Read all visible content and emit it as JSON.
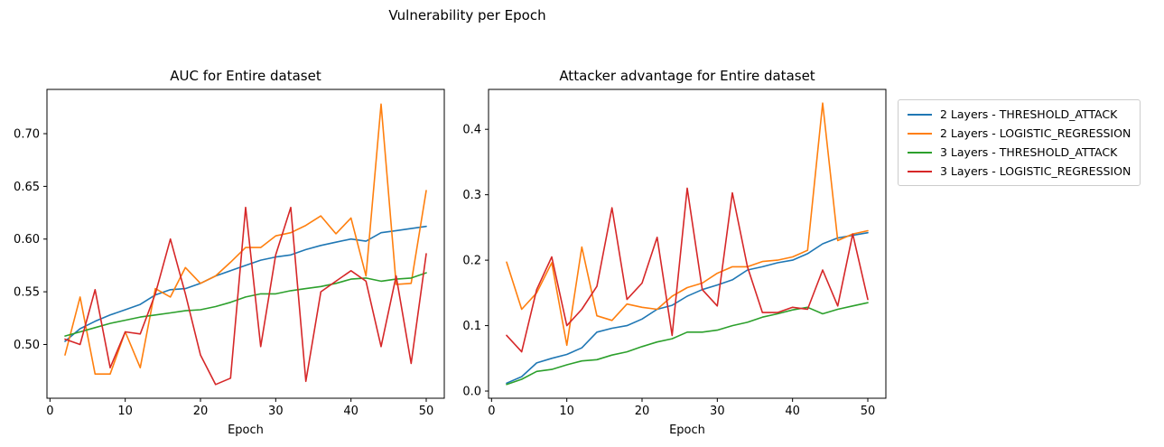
{
  "figure": {
    "title": "Vulnerability per Epoch"
  },
  "legend": {
    "position": "outside-right-top",
    "entries": [
      {
        "label": "2 Layers - THRESHOLD_ATTACK",
        "color": "#1f77b4"
      },
      {
        "label": "2 Layers - LOGISTIC_REGRESSION",
        "color": "#ff7f0e"
      },
      {
        "label": "3 Layers - THRESHOLD_ATTACK",
        "color": "#2ca02c"
      },
      {
        "label": "3 Layers - LOGISTIC_REGRESSION",
        "color": "#d62728"
      }
    ]
  },
  "chart_data": [
    {
      "type": "line",
      "title": "AUC for Entire dataset",
      "xlabel": "Epoch",
      "ylabel": "",
      "grid": false,
      "x": [
        2,
        4,
        6,
        8,
        10,
        12,
        14,
        16,
        18,
        20,
        22,
        24,
        26,
        28,
        30,
        32,
        34,
        36,
        38,
        40,
        42,
        44,
        46,
        48,
        50
      ],
      "xlim": [
        -0.4,
        52.4
      ],
      "ylim": [
        0.449,
        0.742
      ],
      "xticks": [
        0,
        10,
        20,
        30,
        40,
        50
      ],
      "xtick_labels": [
        "0",
        "10",
        "20",
        "30",
        "40",
        "50"
      ],
      "yticks": [
        0.5,
        0.55,
        0.6,
        0.65,
        0.7
      ],
      "ytick_labels": [
        "0.50",
        "0.55",
        "0.60",
        "0.65",
        "0.70"
      ],
      "series": [
        {
          "name": "2 Layers - THRESHOLD_ATTACK",
          "color": "#1f77b4",
          "values": [
            0.503,
            0.515,
            0.522,
            0.528,
            0.533,
            0.538,
            0.547,
            0.552,
            0.553,
            0.558,
            0.565,
            0.57,
            0.575,
            0.58,
            0.583,
            0.585,
            0.59,
            0.594,
            0.597,
            0.6,
            0.598,
            0.606,
            0.608,
            0.61,
            0.612
          ]
        },
        {
          "name": "2 Layers - LOGISTIC_REGRESSION",
          "color": "#ff7f0e",
          "values": [
            0.49,
            0.545,
            0.472,
            0.472,
            0.512,
            0.478,
            0.553,
            0.545,
            0.573,
            0.558,
            0.565,
            0.578,
            0.592,
            0.592,
            0.603,
            0.606,
            0.613,
            0.622,
            0.605,
            0.62,
            0.565,
            0.728,
            0.557,
            0.558,
            0.646
          ]
        },
        {
          "name": "3 Layers - THRESHOLD_ATTACK",
          "color": "#2ca02c",
          "values": [
            0.508,
            0.512,
            0.516,
            0.52,
            0.523,
            0.526,
            0.528,
            0.53,
            0.532,
            0.533,
            0.536,
            0.54,
            0.545,
            0.548,
            0.548,
            0.551,
            0.553,
            0.555,
            0.558,
            0.562,
            0.563,
            0.56,
            0.562,
            0.563,
            0.568
          ]
        },
        {
          "name": "3 Layers - LOGISTIC_REGRESSION",
          "color": "#d62728",
          "values": [
            0.505,
            0.5,
            0.552,
            0.478,
            0.512,
            0.51,
            0.548,
            0.6,
            0.548,
            0.49,
            0.462,
            0.468,
            0.63,
            0.498,
            0.585,
            0.63,
            0.465,
            0.55,
            0.56,
            0.57,
            0.56,
            0.498,
            0.565,
            0.482,
            0.586
          ]
        }
      ]
    },
    {
      "type": "line",
      "title": "Attacker advantage for Entire dataset",
      "xlabel": "Epoch",
      "ylabel": "",
      "grid": false,
      "x": [
        2,
        4,
        6,
        8,
        10,
        12,
        14,
        16,
        18,
        20,
        22,
        24,
        26,
        28,
        30,
        32,
        34,
        36,
        38,
        40,
        42,
        44,
        46,
        48,
        50
      ],
      "xlim": [
        -0.4,
        52.4
      ],
      "ylim": [
        -0.011,
        0.461
      ],
      "xticks": [
        0,
        10,
        20,
        30,
        40,
        50
      ],
      "xtick_labels": [
        "0",
        "10",
        "20",
        "30",
        "40",
        "50"
      ],
      "yticks": [
        0.0,
        0.1,
        0.2,
        0.3,
        0.4
      ],
      "ytick_labels": [
        "0.0",
        "0.1",
        "0.2",
        "0.3",
        "0.4"
      ],
      "series": [
        {
          "name": "2 Layers - THRESHOLD_ATTACK",
          "color": "#1f77b4",
          "values": [
            0.012,
            0.022,
            0.043,
            0.05,
            0.056,
            0.066,
            0.09,
            0.096,
            0.1,
            0.11,
            0.125,
            0.131,
            0.145,
            0.155,
            0.162,
            0.17,
            0.185,
            0.19,
            0.196,
            0.2,
            0.21,
            0.225,
            0.234,
            0.238,
            0.242
          ]
        },
        {
          "name": "2 Layers - LOGISTIC_REGRESSION",
          "color": "#ff7f0e",
          "values": [
            0.197,
            0.125,
            0.15,
            0.196,
            0.07,
            0.22,
            0.115,
            0.108,
            0.133,
            0.128,
            0.125,
            0.145,
            0.158,
            0.165,
            0.18,
            0.19,
            0.19,
            0.198,
            0.2,
            0.205,
            0.215,
            0.44,
            0.23,
            0.24,
            0.245
          ]
        },
        {
          "name": "3 Layers - THRESHOLD_ATTACK",
          "color": "#2ca02c",
          "values": [
            0.01,
            0.018,
            0.03,
            0.033,
            0.04,
            0.046,
            0.048,
            0.055,
            0.06,
            0.068,
            0.075,
            0.08,
            0.09,
            0.09,
            0.093,
            0.1,
            0.105,
            0.113,
            0.118,
            0.124,
            0.128,
            0.118,
            0.125,
            0.13,
            0.135
          ]
        },
        {
          "name": "3 Layers - LOGISTIC_REGRESSION",
          "color": "#d62728",
          "values": [
            0.085,
            0.06,
            0.155,
            0.205,
            0.1,
            0.125,
            0.16,
            0.28,
            0.14,
            0.165,
            0.235,
            0.085,
            0.31,
            0.155,
            0.13,
            0.303,
            0.19,
            0.12,
            0.12,
            0.128,
            0.125,
            0.185,
            0.13,
            0.24,
            0.14
          ]
        }
      ]
    }
  ]
}
